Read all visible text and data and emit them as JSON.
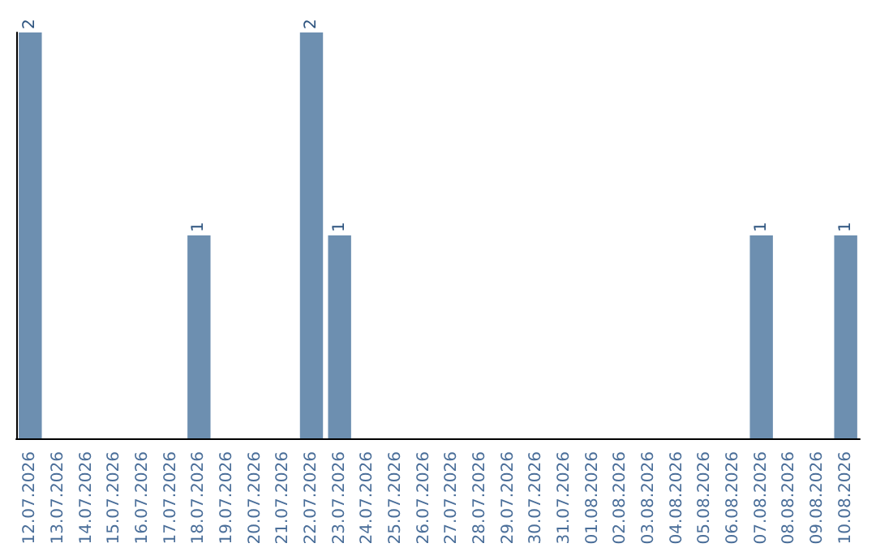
{
  "chart_data": {
    "type": "bar",
    "categories": [
      "12.07.2026",
      "13.07.2026",
      "14.07.2026",
      "15.07.2026",
      "16.07.2026",
      "17.07.2026",
      "18.07.2026",
      "19.07.2026",
      "20.07.2026",
      "21.07.2026",
      "22.07.2026",
      "23.07.2026",
      "24.07.2026",
      "25.07.2026",
      "26.07.2026",
      "27.07.2026",
      "28.07.2026",
      "29.07.2026",
      "30.07.2026",
      "31.07.2026",
      "01.08.2026",
      "02.08.2026",
      "03.08.2026",
      "04.08.2026",
      "05.08.2026",
      "06.08.2026",
      "07.08.2026",
      "08.08.2026",
      "09.08.2026",
      "10.08.2026"
    ],
    "values": [
      2,
      0,
      0,
      0,
      0,
      0,
      1,
      0,
      0,
      0,
      2,
      1,
      0,
      0,
      0,
      0,
      0,
      0,
      0,
      0,
      0,
      0,
      0,
      0,
      0,
      0,
      1,
      0,
      0,
      1
    ],
    "value_labels": [
      "2",
      null,
      null,
      null,
      null,
      null,
      "1",
      null,
      null,
      null,
      "2",
      "1",
      null,
      null,
      null,
      null,
      null,
      null,
      null,
      null,
      null,
      null,
      null,
      null,
      null,
      null,
      "1",
      null,
      null,
      "1"
    ],
    "color": "#6d8fb0",
    "grid": false,
    "tick_labels": "x"
  }
}
